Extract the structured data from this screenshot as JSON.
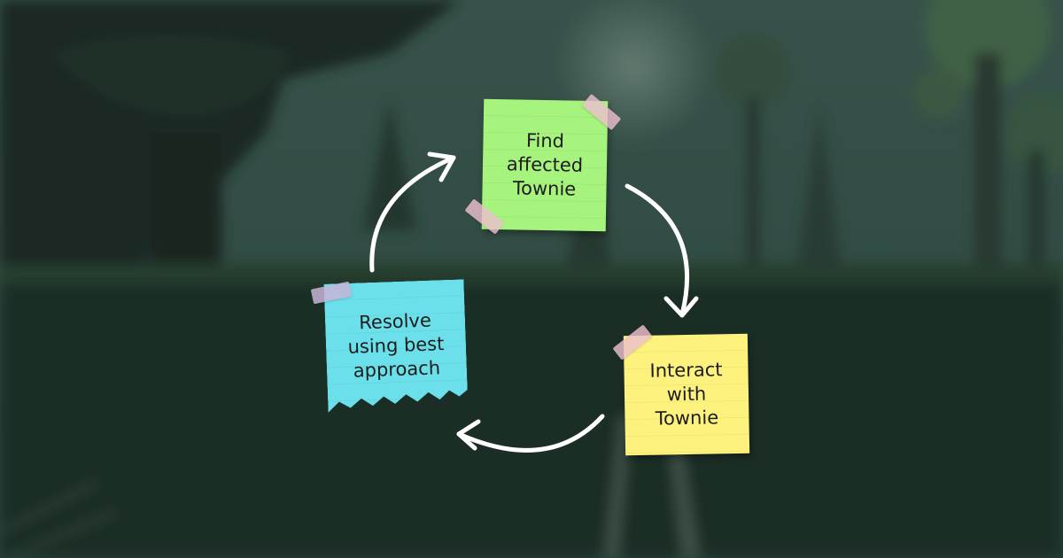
{
  "diagram": {
    "type": "cycle",
    "steps": [
      {
        "label": "Find\naffected\nTownie",
        "color": "#a6f37d"
      },
      {
        "label": "Interact\nwith\nTownie",
        "color": "#fdf27d"
      },
      {
        "label": "Resolve\nusing best\napproach",
        "color": "#6be0ea"
      }
    ],
    "arrow_color": "#ffffff",
    "background_color": "#1f3129"
  }
}
